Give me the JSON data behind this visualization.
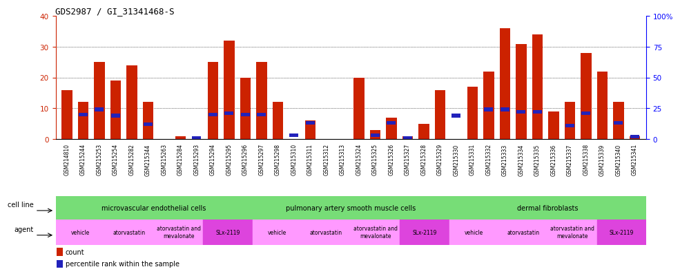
{
  "title": "GDS2987 / GI_31341468-S",
  "samples": [
    "GSM214810",
    "GSM215244",
    "GSM215253",
    "GSM215254",
    "GSM215282",
    "GSM215344",
    "GSM215263",
    "GSM215284",
    "GSM215293",
    "GSM215294",
    "GSM215295",
    "GSM215296",
    "GSM215297",
    "GSM215298",
    "GSM215310",
    "GSM215311",
    "GSM215312",
    "GSM215313",
    "GSM215324",
    "GSM215325",
    "GSM215326",
    "GSM215327",
    "GSM215328",
    "GSM215329",
    "GSM215330",
    "GSM215331",
    "GSM215332",
    "GSM215333",
    "GSM215334",
    "GSM215335",
    "GSM215336",
    "GSM215337",
    "GSM215338",
    "GSM215339",
    "GSM215340",
    "GSM215341"
  ],
  "counts": [
    16,
    12,
    25,
    19,
    24,
    12,
    0,
    1,
    0,
    25,
    32,
    20,
    25,
    12,
    0,
    6,
    0,
    0,
    20,
    3,
    7,
    1,
    5,
    16,
    0,
    17,
    22,
    36,
    31,
    34,
    9,
    12,
    28,
    22,
    12,
    1
  ],
  "percentiles": [
    0,
    20,
    24,
    19,
    0,
    12,
    0,
    0,
    1,
    20,
    21,
    20,
    20,
    0,
    3,
    13,
    0,
    0,
    0,
    3,
    13,
    1,
    0,
    0,
    19,
    0,
    24,
    24,
    22,
    22,
    0,
    11,
    21,
    0,
    13,
    2
  ],
  "bar_color": "#CC2200",
  "blue_color": "#2222BB",
  "bg_color": "#C8C8C8",
  "cell_line_color": "#77DD77",
  "agent_light_color": "#FF99FF",
  "agent_dark_color": "#DD44DD",
  "ylim_left": [
    0,
    40
  ],
  "ylim_right": [
    0,
    100
  ],
  "y_ticks_left": [
    0,
    10,
    20,
    30,
    40
  ],
  "y_ticks_right": [
    0,
    25,
    50,
    75,
    100
  ],
  "cell_line_groups": [
    {
      "label": "microvascular endothelial cells",
      "start": 0,
      "end": 12
    },
    {
      "label": "pulmonary artery smooth muscle cells",
      "start": 12,
      "end": 24
    },
    {
      "label": "dermal fibroblasts",
      "start": 24,
      "end": 36
    }
  ],
  "agent_groups": [
    {
      "label": "vehicle",
      "start": 0,
      "end": 3,
      "slx": false
    },
    {
      "label": "atorvastatin",
      "start": 3,
      "end": 6,
      "slx": false
    },
    {
      "label": "atorvastatin and\nmevalonate",
      "start": 6,
      "end": 9,
      "slx": false
    },
    {
      "label": "SLx-2119",
      "start": 9,
      "end": 12,
      "slx": true
    },
    {
      "label": "vehicle",
      "start": 12,
      "end": 15,
      "slx": false
    },
    {
      "label": "atorvastatin",
      "start": 15,
      "end": 18,
      "slx": false
    },
    {
      "label": "atorvastatin and\nmevalonate",
      "start": 18,
      "end": 21,
      "slx": false
    },
    {
      "label": "SLx-2119",
      "start": 21,
      "end": 24,
      "slx": true
    },
    {
      "label": "vehicle",
      "start": 24,
      "end": 27,
      "slx": false
    },
    {
      "label": "atorvastatin",
      "start": 27,
      "end": 30,
      "slx": false
    },
    {
      "label": "atorvastatin and\nmevalonate",
      "start": 30,
      "end": 33,
      "slx": false
    },
    {
      "label": "SLx-2119",
      "start": 33,
      "end": 36,
      "slx": true
    }
  ]
}
